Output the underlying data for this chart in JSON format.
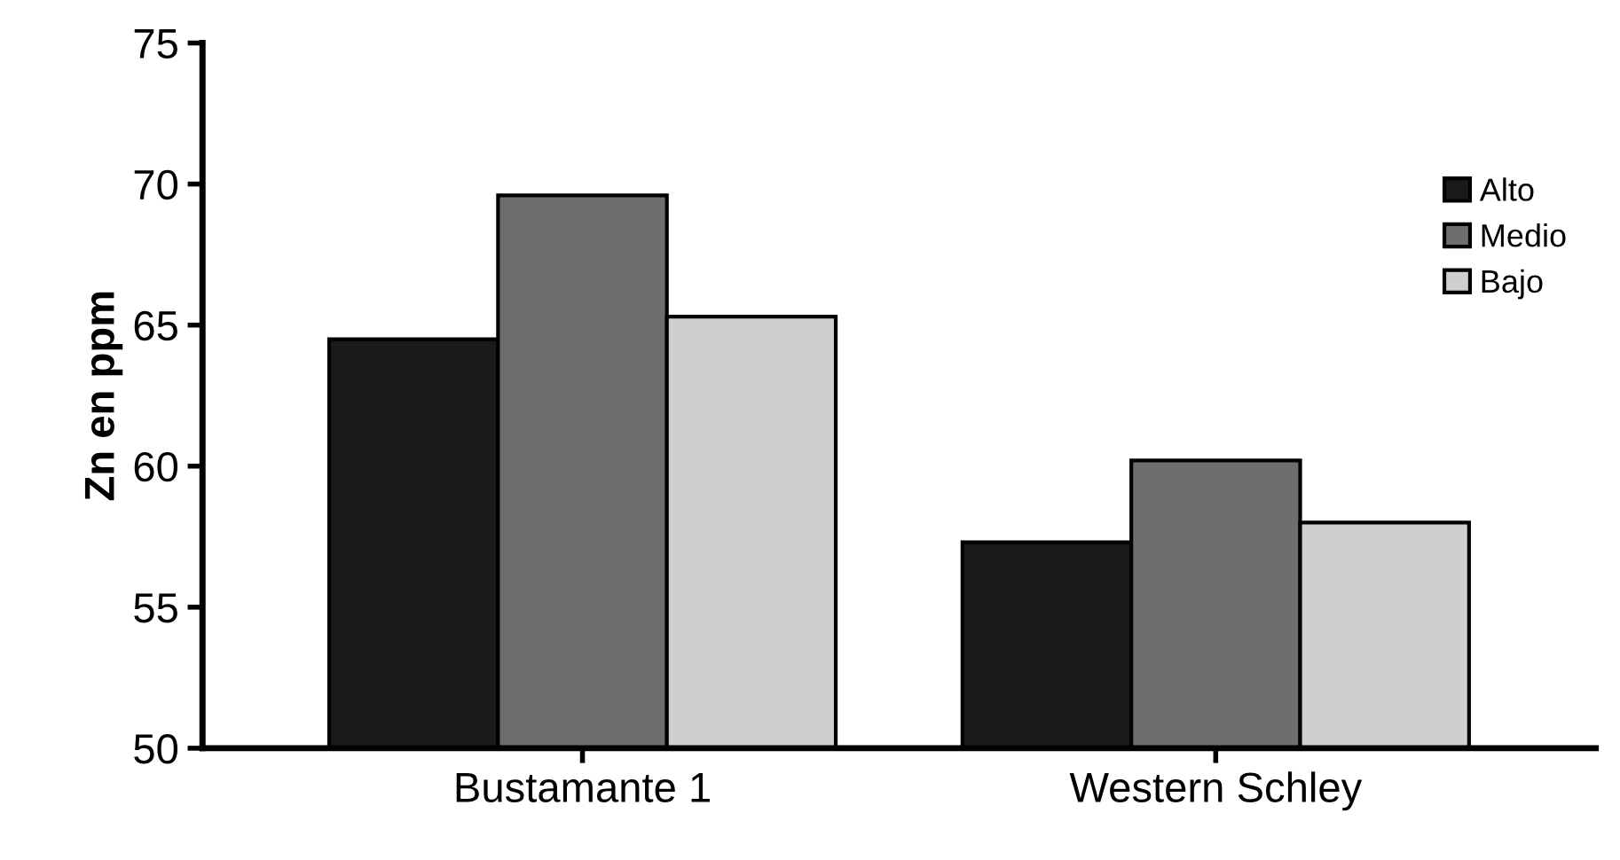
{
  "chart_data": {
    "type": "bar",
    "ylabel": "Zn en ppm",
    "categories": [
      "Bustamante 1",
      "Western Schley"
    ],
    "series": [
      {
        "name": "Alto",
        "color": "#1a1a1a",
        "values": [
          64.5,
          57.3
        ]
      },
      {
        "name": "Medio",
        "color": "#6e6e6e",
        "values": [
          69.6,
          60.2
        ]
      },
      {
        "name": "Bajo",
        "color": "#cfcfcf",
        "values": [
          65.3,
          58.0
        ]
      }
    ],
    "ylim": [
      50,
      75
    ],
    "yticks": [
      50,
      55,
      60,
      65,
      70,
      75
    ],
    "grid": false,
    "legend": "top right"
  }
}
